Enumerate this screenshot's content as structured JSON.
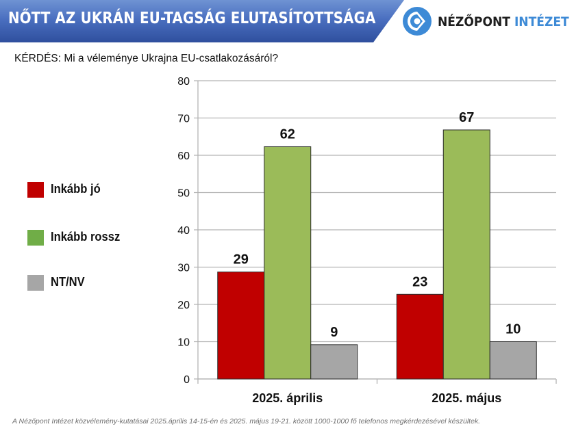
{
  "header": {
    "title": "NŐTT AZ UKRÁN EU-TAGSÁG ELUTASÍTOTTSÁGA",
    "logo_word1": "NÉZŐPONT",
    "logo_word2": "INTÉZET",
    "logo_icon": "nezopont-logo-icon",
    "banner_color": "#4a6fc0",
    "logo_color": "#3d8ad6"
  },
  "question": "KÉRDÉS: Mi a véleménye Ukrajna EU-csatlakozásáról?",
  "footnote": "A Nézőpont Intézet közvélemény-kutatásai 2025.április 14-15-én és 2025. május 19-21. között 1000-1000 fő telefonos megkérdezésével készültek.",
  "chart_data": {
    "type": "bar",
    "title": "NŐTT AZ UKRÁN EU-TAGSÁG ELUTASÍTOTTSÁGA",
    "xlabel": "",
    "ylabel": "",
    "categories": [
      "2025. április",
      "2025. május"
    ],
    "series": [
      {
        "name": "Inkább jó",
        "color": "#c00000",
        "values": [
          29,
          23
        ],
        "bar_values": [
          28.7,
          22.7
        ]
      },
      {
        "name": "Inkább rossz",
        "color": "#9bbb59",
        "values": [
          62,
          67
        ],
        "bar_values": [
          62.3,
          66.8
        ]
      },
      {
        "name": "NT/NV",
        "color": "#a6a6a6",
        "values": [
          9,
          10
        ],
        "bar_values": [
          9.2,
          10
        ]
      }
    ],
    "ylim": [
      0,
      80
    ],
    "yticks": [
      "0",
      "10",
      "20",
      "30",
      "40",
      "50",
      "60",
      "70",
      "80"
    ],
    "grid": true,
    "legend": "left"
  }
}
